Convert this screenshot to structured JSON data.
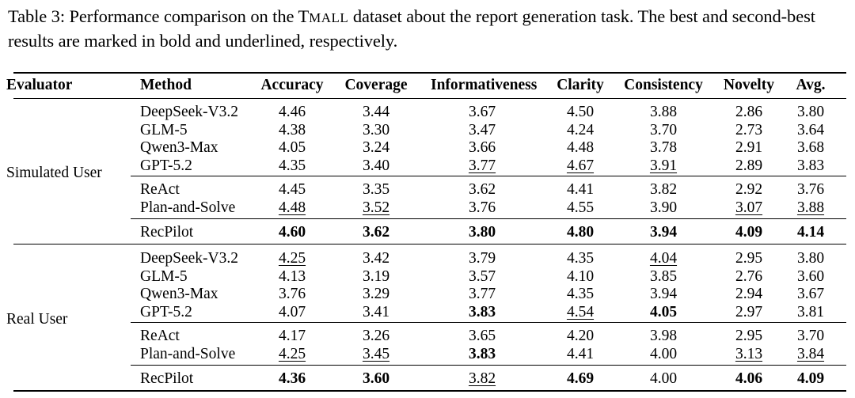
{
  "caption": {
    "lead": "Table 3: Performance comparison on the ",
    "dataset_first": "T",
    "dataset_rest": "MALL",
    "tail": " dataset about the report generation task. The best and second-best results are marked in bold and underlined, respectively."
  },
  "headers": [
    "Evaluator",
    "Method",
    "Accuracy",
    "Coverage",
    "Informativeness",
    "Clarity",
    "Consistency",
    "Novelty",
    "Avg."
  ],
  "groups": [
    {
      "evaluator": "Simulated User",
      "rows": [
        {
          "method": "DeepSeek-V3.2",
          "vals": [
            "4.46",
            "3.44",
            "3.67",
            "4.50",
            "3.88",
            "2.86",
            "3.80"
          ],
          "fmt": [
            "",
            "",
            "",
            "",
            "",
            "",
            ""
          ],
          "block": 0
        },
        {
          "method": "GLM-5",
          "vals": [
            "4.38",
            "3.30",
            "3.47",
            "4.24",
            "3.70",
            "2.73",
            "3.64"
          ],
          "fmt": [
            "",
            "",
            "",
            "",
            "",
            "",
            ""
          ],
          "block": 0
        },
        {
          "method": "Qwen3-Max",
          "vals": [
            "4.05",
            "3.24",
            "3.66",
            "4.48",
            "3.78",
            "2.91",
            "3.68"
          ],
          "fmt": [
            "",
            "",
            "",
            "",
            "",
            "",
            ""
          ],
          "block": 0
        },
        {
          "method": "GPT-5.2",
          "vals": [
            "4.35",
            "3.40",
            "3.77",
            "4.67",
            "3.91",
            "2.89",
            "3.83"
          ],
          "fmt": [
            "",
            "",
            "u",
            "u",
            "u",
            "",
            ""
          ],
          "block": 0
        },
        {
          "method": "ReAct",
          "vals": [
            "4.45",
            "3.35",
            "3.62",
            "4.41",
            "3.82",
            "2.92",
            "3.76"
          ],
          "fmt": [
            "",
            "",
            "",
            "",
            "",
            "",
            ""
          ],
          "block": 1
        },
        {
          "method": "Plan-and-Solve",
          "vals": [
            "4.48",
            "3.52",
            "3.76",
            "4.55",
            "3.90",
            "3.07",
            "3.88"
          ],
          "fmt": [
            "u",
            "u",
            "",
            "",
            "",
            "u",
            "u"
          ],
          "block": 1
        },
        {
          "method": "RecPilot",
          "vals": [
            "4.60",
            "3.62",
            "3.80",
            "4.80",
            "3.94",
            "4.09",
            "4.14"
          ],
          "fmt": [
            "b",
            "b",
            "b",
            "b",
            "b",
            "b",
            "b"
          ],
          "block": 2
        }
      ]
    },
    {
      "evaluator": "Real User",
      "rows": [
        {
          "method": "DeepSeek-V3.2",
          "vals": [
            "4.25",
            "3.42",
            "3.79",
            "4.35",
            "4.04",
            "2.95",
            "3.80"
          ],
          "fmt": [
            "u",
            "",
            "",
            "",
            "u",
            "",
            ""
          ],
          "block": 0
        },
        {
          "method": "GLM-5",
          "vals": [
            "4.13",
            "3.19",
            "3.57",
            "4.10",
            "3.85",
            "2.76",
            "3.60"
          ],
          "fmt": [
            "",
            "",
            "",
            "",
            "",
            "",
            ""
          ],
          "block": 0
        },
        {
          "method": "Qwen3-Max",
          "vals": [
            "3.76",
            "3.29",
            "3.77",
            "4.35",
            "3.94",
            "2.94",
            "3.67"
          ],
          "fmt": [
            "",
            "",
            "",
            "",
            "",
            "",
            ""
          ],
          "block": 0
        },
        {
          "method": "GPT-5.2",
          "vals": [
            "4.07",
            "3.41",
            "3.83",
            "4.54",
            "4.05",
            "2.97",
            "3.81"
          ],
          "fmt": [
            "",
            "",
            "b",
            "u",
            "b",
            "",
            ""
          ],
          "block": 0
        },
        {
          "method": "ReAct",
          "vals": [
            "4.17",
            "3.26",
            "3.65",
            "4.20",
            "3.98",
            "2.95",
            "3.70"
          ],
          "fmt": [
            "",
            "",
            "",
            "",
            "",
            "",
            ""
          ],
          "block": 1
        },
        {
          "method": "Plan-and-Solve",
          "vals": [
            "4.25",
            "3.45",
            "3.83",
            "4.41",
            "4.00",
            "3.13",
            "3.84"
          ],
          "fmt": [
            "u",
            "u",
            "b",
            "",
            "",
            "u",
            "u"
          ],
          "block": 1
        },
        {
          "method": "RecPilot",
          "vals": [
            "4.36",
            "3.60",
            "3.82",
            "4.69",
            "4.00",
            "4.06",
            "4.09"
          ],
          "fmt": [
            "b",
            "b",
            "u",
            "b",
            "",
            "b",
            "b"
          ],
          "block": 2
        }
      ]
    }
  ]
}
